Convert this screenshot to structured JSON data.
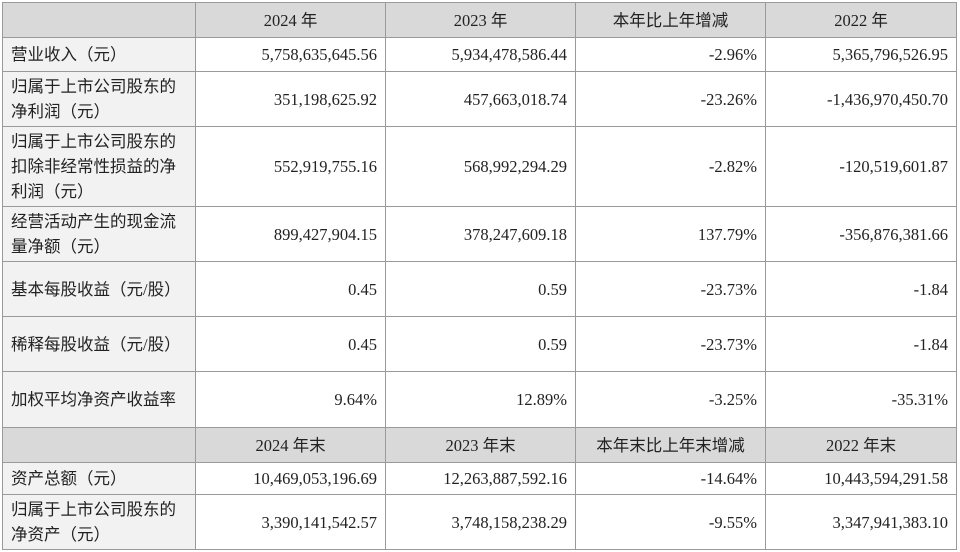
{
  "table": {
    "header": [
      "2024 年",
      "2023 年",
      "本年比上年增减",
      "2022 年"
    ],
    "rows": [
      [
        "营业收入（元）",
        "5,758,635,645.56",
        "5,934,478,586.44",
        "-2.96%",
        "5,365,796,526.95"
      ],
      [
        "归属于上市公司股东的净利润（元）",
        "351,198,625.92",
        "457,663,018.74",
        "-23.26%",
        "-1,436,970,450.70"
      ],
      [
        "归属于上市公司股东的扣除非经常性损益的净利润（元）",
        "552,919,755.16",
        "568,992,294.29",
        "-2.82%",
        "-120,519,601.87"
      ],
      [
        "经营活动产生的现金流量净额（元）",
        "899,427,904.15",
        "378,247,609.18",
        "137.79%",
        "-356,876,381.66"
      ],
      [
        "基本每股收益（元/股）",
        "0.45",
        "0.59",
        "-23.73%",
        "-1.84"
      ],
      [
        "稀释每股收益（元/股）",
        "0.45",
        "0.59",
        "-23.73%",
        "-1.84"
      ],
      [
        "加权平均净资产收益率",
        "9.64%",
        "12.89%",
        "-3.25%",
        "-35.31%"
      ]
    ],
    "header2": [
      "2024 年末",
      "2023 年末",
      "本年末比上年末增减",
      "2022 年末"
    ],
    "rows2": [
      [
        "资产总额（元）",
        "10,469,053,196.69",
        "12,263,887,592.16",
        "-14.64%",
        "10,443,594,291.58"
      ],
      [
        "归属于上市公司股东的净资产（元）",
        "3,390,141,542.57",
        "3,748,158,238.29",
        "-9.55%",
        "3,347,941,383.10"
      ]
    ]
  }
}
